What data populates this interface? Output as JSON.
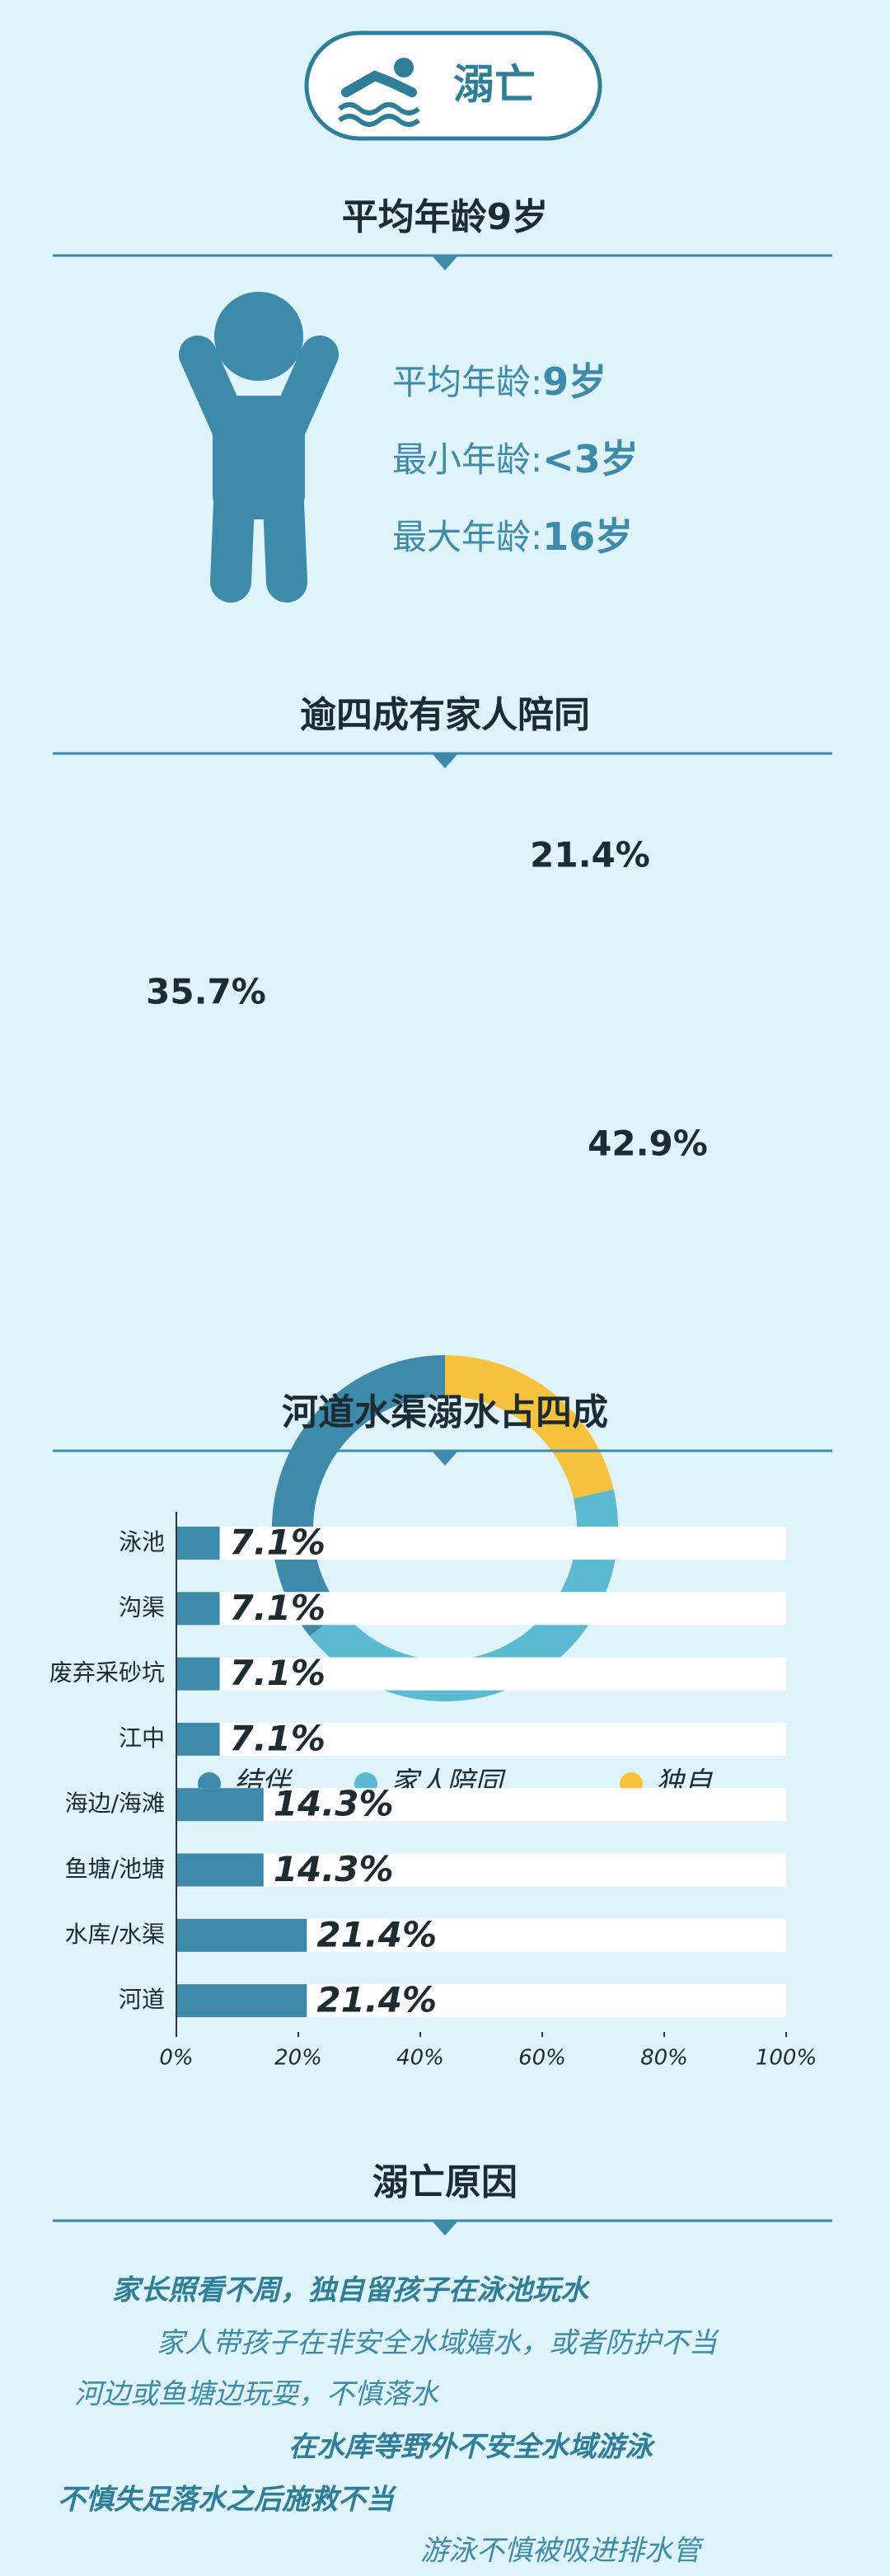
{
  "header": {
    "title": "溺亡"
  },
  "age": {
    "title": "平均年龄9岁",
    "stats": [
      {
        "label": "平均年龄:",
        "value": "9岁"
      },
      {
        "label": "最小年龄:",
        "value": "<3岁"
      },
      {
        "label": "最大年龄:",
        "value": "16岁"
      }
    ]
  },
  "chart_data": [
    {
      "type": "donut",
      "title": "逾四成有家人陪同",
      "categories": [
        "结伴",
        "家人陪同",
        "独自"
      ],
      "values": [
        35.7,
        42.9,
        21.4
      ],
      "value_labels": [
        "35.7%",
        "42.9%",
        "21.4%"
      ],
      "colors": [
        "#3d8aab",
        "#5bbad2",
        "#f6c23e"
      ],
      "legend": "bottom"
    },
    {
      "type": "bar",
      "orientation": "horizontal",
      "title": "河道水渠溺水占四成",
      "categories": [
        "泳池",
        "沟渠",
        "废弃采砂坑",
        "江中",
        "海边/海滩",
        "鱼塘/池塘",
        "水库/水渠",
        "河道"
      ],
      "values": [
        7.1,
        7.1,
        7.1,
        7.1,
        14.3,
        14.3,
        21.4,
        21.4
      ],
      "value_labels": [
        "7.1%",
        "7.1%",
        "7.1%",
        "7.1%",
        "14.3%",
        "14.3%",
        "21.4%",
        "21.4%"
      ],
      "color": "#3d8aab",
      "xlim": [
        0,
        100
      ],
      "xticks": [
        {
          "value": 0,
          "label": "0%"
        },
        {
          "value": 20,
          "label": "20%"
        },
        {
          "value": 40,
          "label": "40%"
        },
        {
          "value": 60,
          "label": "60%"
        },
        {
          "value": 80,
          "label": "80%"
        },
        {
          "value": 100,
          "label": "100%"
        }
      ]
    }
  ],
  "reasons": {
    "title": "溺亡原因",
    "items": [
      "家长照看不周，独自留孩子在泳池玩水",
      "家人带孩子在非安全水域嬉水，或者防护不当",
      "河边或鱼塘边玩耍，不慎落水",
      "在水库等野外不安全水域游泳",
      "不慎失足落水之后施救不当",
      "游泳不慎被吸进排水管"
    ]
  }
}
